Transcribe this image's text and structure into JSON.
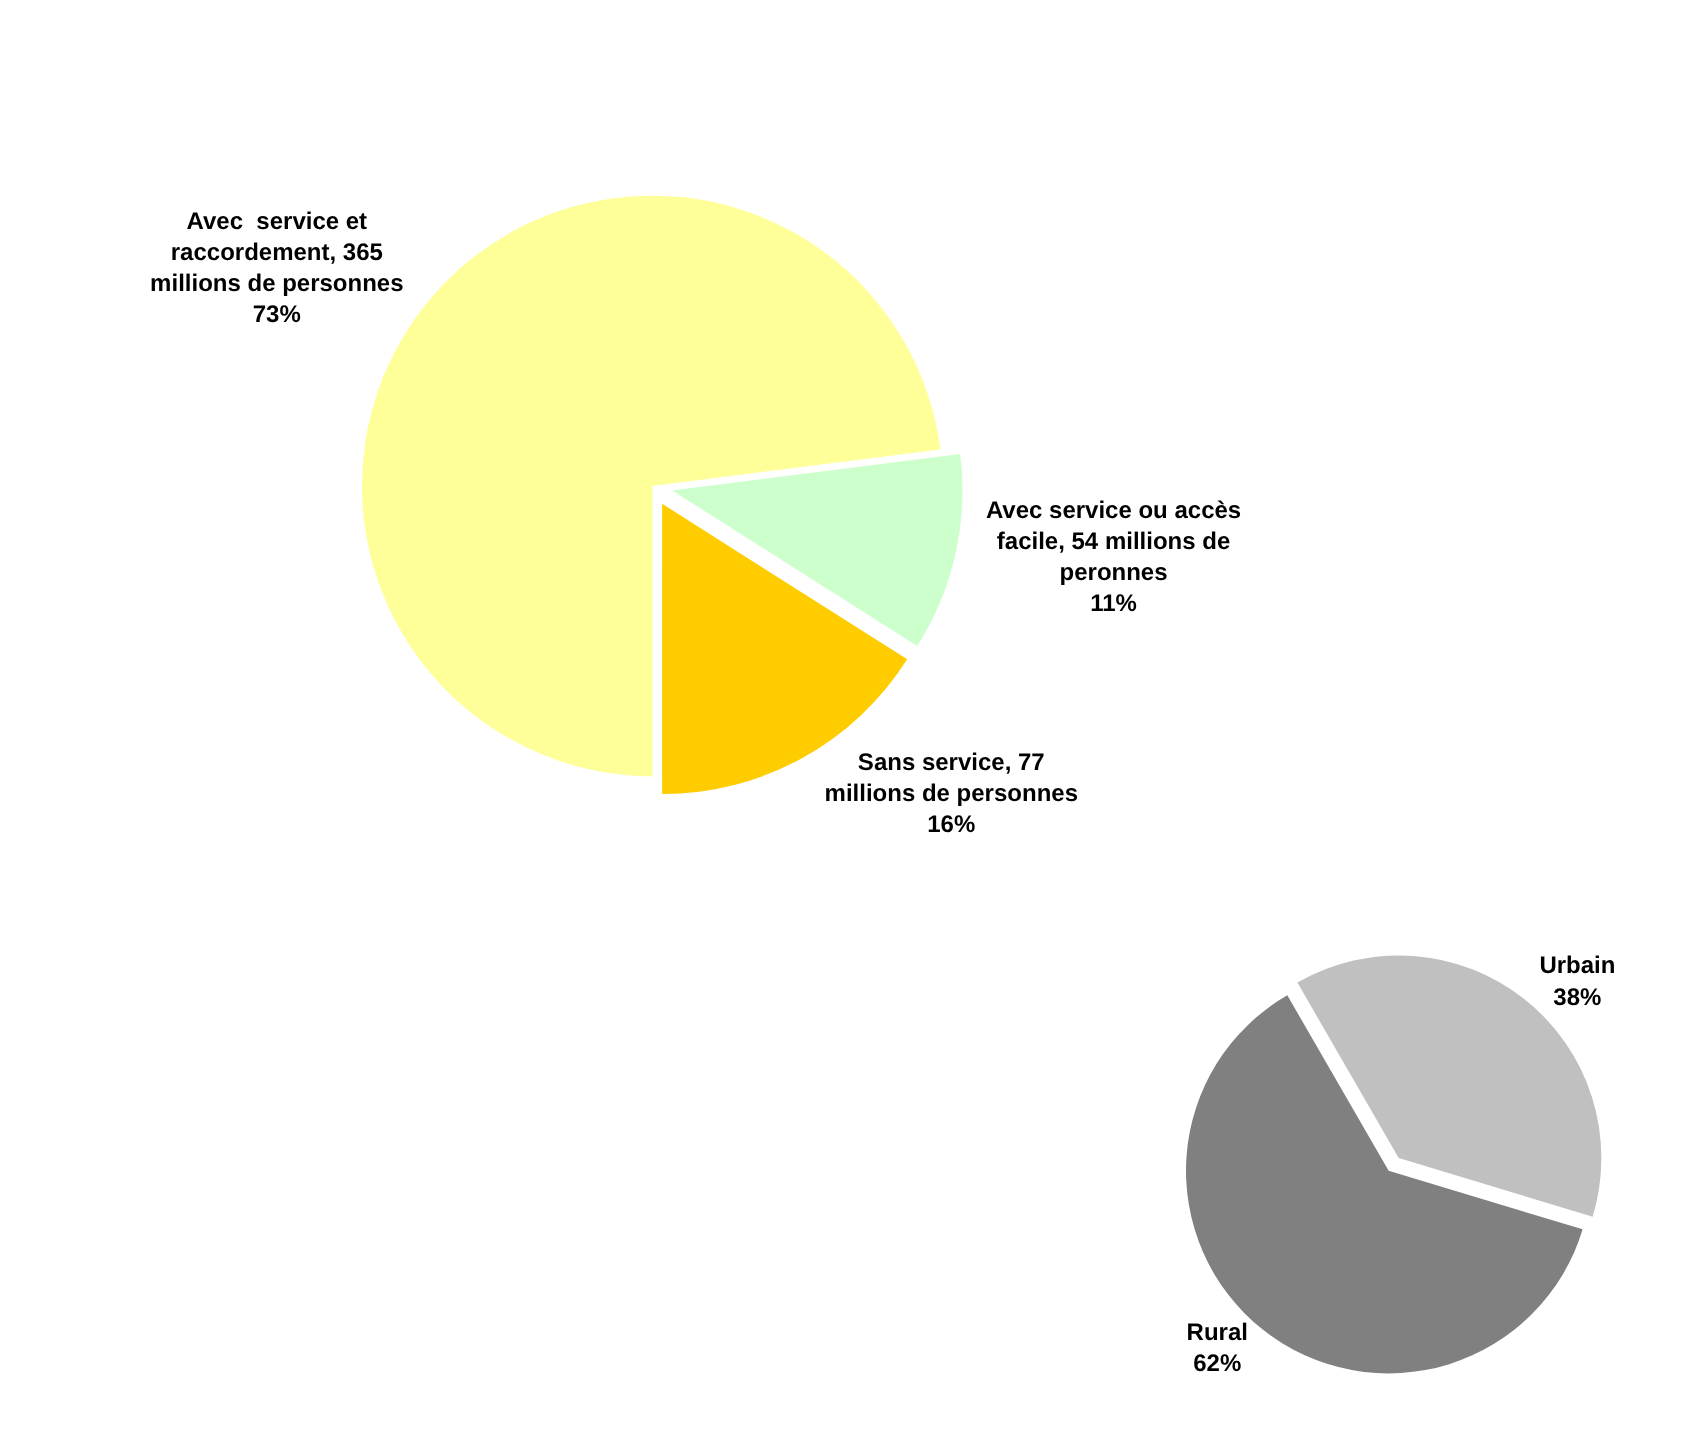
{
  "chart_data": [
    {
      "type": "pie",
      "categories": [
        "Avec  service et raccordement, 365 millions de personnes",
        "Avec service ou accès facile, 54 millions de peronnes",
        "Sans service, 77 millions de personnes"
      ],
      "values": [
        73,
        11,
        16
      ],
      "value_labels": [
        "73%",
        "11%",
        "16%"
      ],
      "colors": [
        "#ffff99",
        "#ccffcc",
        "#ffcc00"
      ],
      "legend": false
    },
    {
      "type": "pie",
      "categories": [
        "Urbain",
        "Rural"
      ],
      "values": [
        38,
        62
      ],
      "value_labels": [
        "38%",
        "62%"
      ],
      "colors": [
        "#c0c0c0",
        "#808080"
      ],
      "legend": false
    }
  ]
}
